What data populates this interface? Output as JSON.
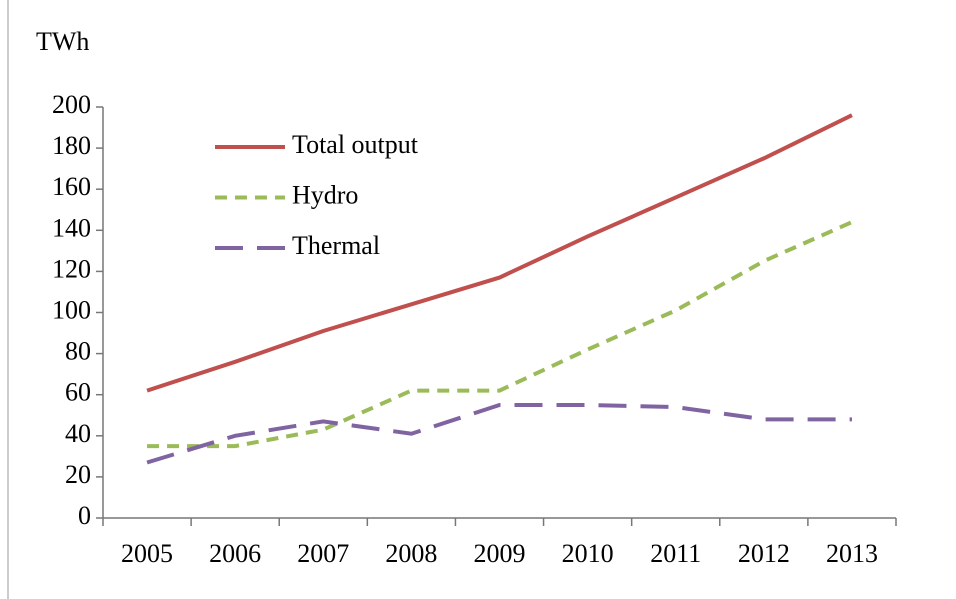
{
  "chart_data": {
    "type": "line",
    "y_label": "TWh",
    "categories": [
      "2005",
      "2006",
      "2007",
      "2008",
      "2009",
      "2010",
      "2011",
      "2012",
      "2013"
    ],
    "series": [
      {
        "name": "Total output",
        "color": "#c0504d",
        "dash": "solid",
        "values": [
          62,
          76,
          91,
          104,
          117,
          137,
          156,
          175,
          196
        ]
      },
      {
        "name": "Hydro",
        "color": "#9bbb59",
        "dash": "short",
        "values": [
          35,
          35,
          43,
          62,
          62,
          82,
          101,
          125,
          144
        ]
      },
      {
        "name": "Thermal",
        "color": "#8064a2",
        "dash": "long",
        "values": [
          27,
          40,
          47,
          41,
          55,
          55,
          54,
          48,
          48
        ]
      }
    ],
    "ylim": [
      0,
      200
    ],
    "yticks": [
      0,
      20,
      40,
      60,
      80,
      100,
      120,
      140,
      160,
      180,
      200
    ],
    "grid": false,
    "legend": "upper left"
  }
}
